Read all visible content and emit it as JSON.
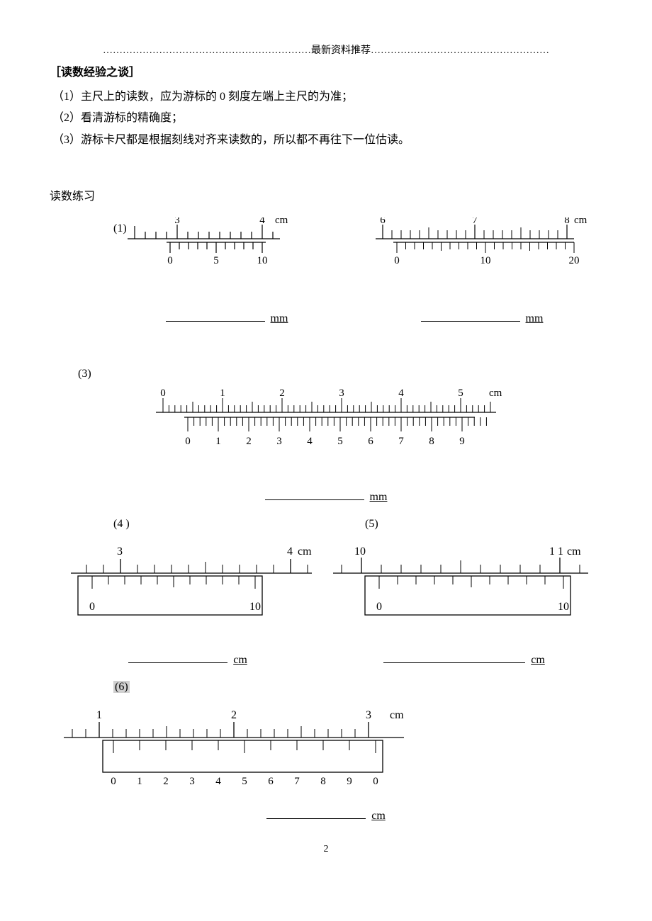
{
  "header": {
    "text": "………………………………………………………最新资料推荐………………………………………………"
  },
  "section_title": "［读数经验之谈］",
  "points": [
    "（1）主尺上的读数，应为游标的 0 刻度左端上主尺的为准；",
    "（2）看清游标的精确度；",
    "（3）游标卡尺都是根据刻线对齐来读数的，所以都不再往下一位估读。"
  ],
  "exercise_title": "读数练习",
  "labels": {
    "p1": "(1)",
    "p3": "(3)",
    "p4": "(4 )",
    "p5": "(5)",
    "p6": "(6)"
  },
  "unit_mm": "mm",
  "unit_cm": "cm",
  "page_number": "2",
  "chart1": {
    "main_labels": [
      "3",
      "4"
    ],
    "main_unit": "cm",
    "vernier_labels": [
      "0",
      "5",
      "10"
    ],
    "color": "#000000"
  },
  "chart2": {
    "main_labels": [
      "6",
      "7",
      "8"
    ],
    "main_unit": "cm",
    "vernier_labels": [
      "0",
      "10",
      "20"
    ],
    "color": "#000000"
  },
  "chart3": {
    "main_labels": [
      "0",
      "1",
      "2",
      "3",
      "4",
      "5"
    ],
    "main_unit": "cm",
    "vernier_labels": [
      "0",
      "1",
      "2",
      "3",
      "4",
      "5",
      "6",
      "7",
      "8",
      "9"
    ],
    "color": "#000000"
  },
  "chart4": {
    "main_labels": [
      "3",
      "4"
    ],
    "main_unit": "cm",
    "vernier_labels": [
      "0",
      "10"
    ],
    "color": "#000000"
  },
  "chart5": {
    "main_labels": [
      "10",
      "11"
    ],
    "main_unit": "cm",
    "vernier_labels2": [
      "0",
      "10"
    ],
    "color": "#000000"
  },
  "chart6": {
    "main_labels": [
      "1",
      "2",
      "3"
    ],
    "main_unit": "cm",
    "vernier_labels": [
      "0",
      "1",
      "2",
      "3",
      "4",
      "5",
      "6",
      "7",
      "8",
      "9",
      "0"
    ],
    "color": "#000000"
  }
}
